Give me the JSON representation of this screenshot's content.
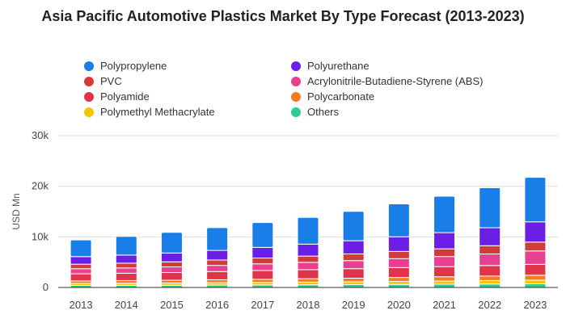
{
  "chart_data": {
    "type": "bar",
    "stacked": true,
    "title": "Asia Pacific Automotive Plastics Market By Type Forecast (2013-2023)",
    "ylabel": "USD Mn",
    "xlabel": "",
    "ylim": [
      0,
      30000
    ],
    "y_ticks": [
      0,
      10000,
      20000,
      30000
    ],
    "y_tick_labels": [
      "0",
      "10k",
      "20k",
      "30k"
    ],
    "grid": true,
    "legend_position": "top",
    "categories": [
      "2013",
      "2014",
      "2015",
      "2016",
      "2017",
      "2018",
      "2019",
      "2020",
      "2021",
      "2022",
      "2023"
    ],
    "series": [
      {
        "name": "Others",
        "color": "#2ecc8f",
        "values": [
          400,
          420,
          440,
          470,
          500,
          530,
          560,
          600,
          640,
          680,
          720
        ]
      },
      {
        "name": "Polymethyl Methacrylate",
        "color": "#f5c400",
        "values": [
          400,
          420,
          440,
          470,
          500,
          530,
          560,
          600,
          640,
          680,
          730
        ]
      },
      {
        "name": "Polycarbonate",
        "color": "#f57c1f",
        "values": [
          500,
          520,
          550,
          590,
          630,
          670,
          720,
          780,
          840,
          900,
          970
        ]
      },
      {
        "name": "Polyamide",
        "color": "#e0344b",
        "values": [
          1400,
          1450,
          1520,
          1620,
          1720,
          1800,
          1880,
          1950,
          2000,
          2080,
          2150
        ]
      },
      {
        "name": "Acrylonitrile-Butadiene-Styrene (ABS)",
        "color": "#e8408f",
        "values": [
          1000,
          1050,
          1120,
          1210,
          1320,
          1440,
          1590,
          1770,
          2000,
          2280,
          2650
        ]
      },
      {
        "name": "PVC",
        "color": "#d33b3b",
        "values": [
          900,
          940,
          1000,
          1070,
          1150,
          1230,
          1320,
          1420,
          1520,
          1630,
          1750
        ]
      },
      {
        "name": "Polyurethane",
        "color": "#6a1ee6",
        "values": [
          1500,
          1600,
          1730,
          1900,
          2100,
          2350,
          2600,
          2900,
          3200,
          3550,
          4000
        ]
      },
      {
        "name": "Polypropylene",
        "color": "#1a7ee8",
        "values": [
          3300,
          3700,
          4100,
          4500,
          4900,
          5300,
          5800,
          6500,
          7200,
          7900,
          8800
        ]
      }
    ],
    "legend": [
      {
        "name": "Polypropylene",
        "color": "#1a7ee8"
      },
      {
        "name": "Polyurethane",
        "color": "#6a1ee6"
      },
      {
        "name": "PVC",
        "color": "#d33b3b"
      },
      {
        "name": "Acrylonitrile-Butadiene-Styrene (ABS)",
        "color": "#e8408f"
      },
      {
        "name": "Polyamide",
        "color": "#e0344b"
      },
      {
        "name": "Polycarbonate",
        "color": "#f57c1f"
      },
      {
        "name": "Polymethyl Methacrylate",
        "color": "#f5c400"
      },
      {
        "name": "Others",
        "color": "#2ecc8f"
      }
    ]
  }
}
